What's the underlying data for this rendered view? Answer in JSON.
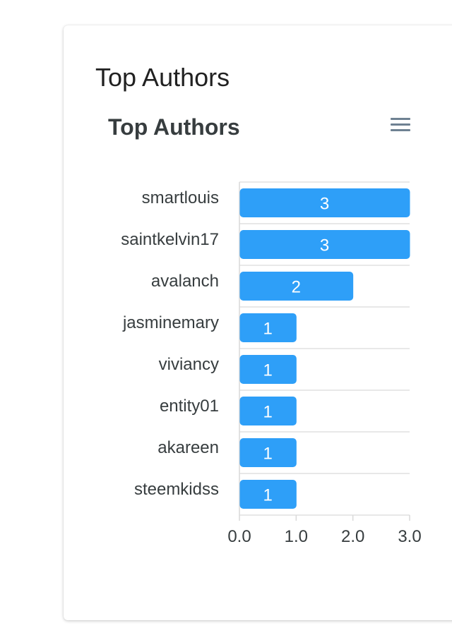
{
  "card": {
    "title": "Top Authors"
  },
  "chart_data": {
    "type": "bar",
    "orientation": "horizontal",
    "title": "Top Authors",
    "categories": [
      "smartlouis",
      "saintkelvin17",
      "avalanch",
      "jasminemary",
      "viviancy",
      "entity01",
      "akareen",
      "steemkidss"
    ],
    "values": [
      3,
      3,
      2,
      1,
      1,
      1,
      1,
      1
    ],
    "xlim": [
      0,
      3
    ],
    "x_ticks": [
      "0.0",
      "1.0",
      "2.0",
      "3.0"
    ],
    "grid": "horizontal",
    "bar_color": "#2e9ff8",
    "data_labels": true
  }
}
